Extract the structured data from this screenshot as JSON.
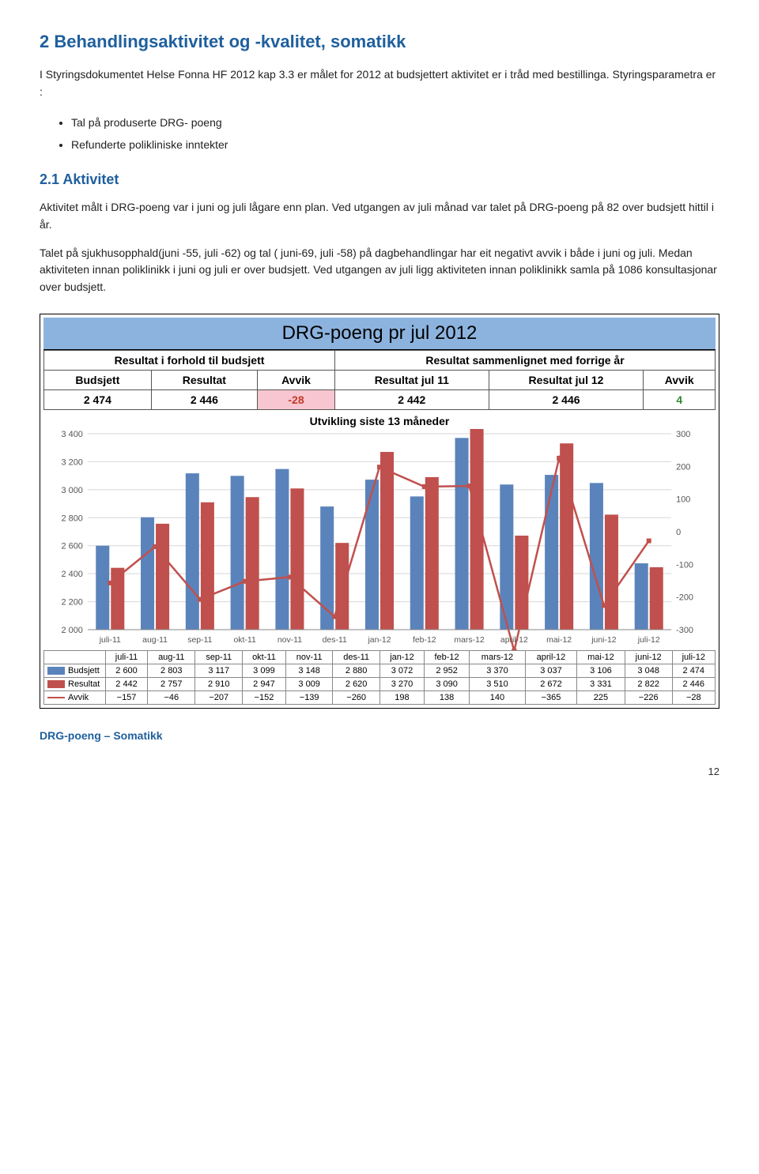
{
  "heading1": "2  Behandlingsaktivitet og -kvalitet, somatikk",
  "para1": "I Styringsdokumentet Helse Fonna HF 2012 kap 3.3 er målet for 2012 at budsjettert aktivitet er i tråd med bestillinga. Styringsparametra er :",
  "bullets": [
    "Tal på produserte DRG- poeng",
    "Refunderte polikliniske inntekter"
  ],
  "heading2": "2.1  Aktivitet",
  "para2": "Aktivitet målt i DRG-poeng var i juni og juli lågare enn plan. Ved utgangen av juli månad var talet på DRG-poeng på 82 over budsjett hittil i år.",
  "para3": "Talet på sjukhusopphald(juni -55, juli -62) og tal ( juni-69, juli -58) på dagbehandlingar har eit negativt avvik i både i juni og juli. Medan aktiviteten innan poliklinikk i juni og juli er over budsjett. Ved utgangen av juli ligg aktiviteten innan poliklinikk samla på 1086 konsultasjonar over budsjett.",
  "chart": {
    "title": "DRG-poeng pr jul 2012",
    "left_header": "Resultat i forhold til budsjett",
    "right_header": "Resultat sammenlignet med forrige år",
    "cols_left": [
      "Budsjett",
      "Resultat",
      "Avvik"
    ],
    "cols_right": [
      "Resultat jul 11",
      "Resultat jul 12",
      "Avvik"
    ],
    "vals_left": [
      "2 474",
      "2 446",
      "-28"
    ],
    "vals_right": [
      "2 442",
      "2 446",
      "4"
    ],
    "mid_title": "Utvikling siste 13 måneder",
    "left_axis": {
      "min": 2000,
      "max": 3400,
      "step": 200
    },
    "right_axis": {
      "min": -300,
      "max": 300,
      "step": 100
    },
    "months": [
      "juli-11",
      "aug-11",
      "sep-11",
      "okt-11",
      "nov-11",
      "des-11",
      "jan-12",
      "feb-12",
      "mars-12",
      "april-12",
      "mai-12",
      "juni-12",
      "juli-12"
    ],
    "budsjett": [
      2600,
      2803,
      3117,
      3099,
      3148,
      2880,
      3072,
      2952,
      3370,
      3037,
      3106,
      3048,
      2474
    ],
    "resultat": [
      2442,
      2757,
      2910,
      2947,
      3009,
      2620,
      3270,
      3090,
      3510,
      2672,
      3331,
      2822,
      2446
    ],
    "avvik": [
      -157,
      -46,
      -207,
      -152,
      -139,
      -260,
      198,
      138,
      140,
      -365,
      225,
      -226,
      -28
    ],
    "row_labels": [
      "Budsjett",
      "Resultat",
      "Avvik"
    ],
    "colors": {
      "budsjett": "#5b83bb",
      "resultat": "#c0504d",
      "avvik_line": "#c0504d",
      "grid": "#d7d7d7",
      "axis_text": "#606060"
    }
  },
  "footer_label": "DRG-poeng – Somatikk",
  "page_num": "12"
}
